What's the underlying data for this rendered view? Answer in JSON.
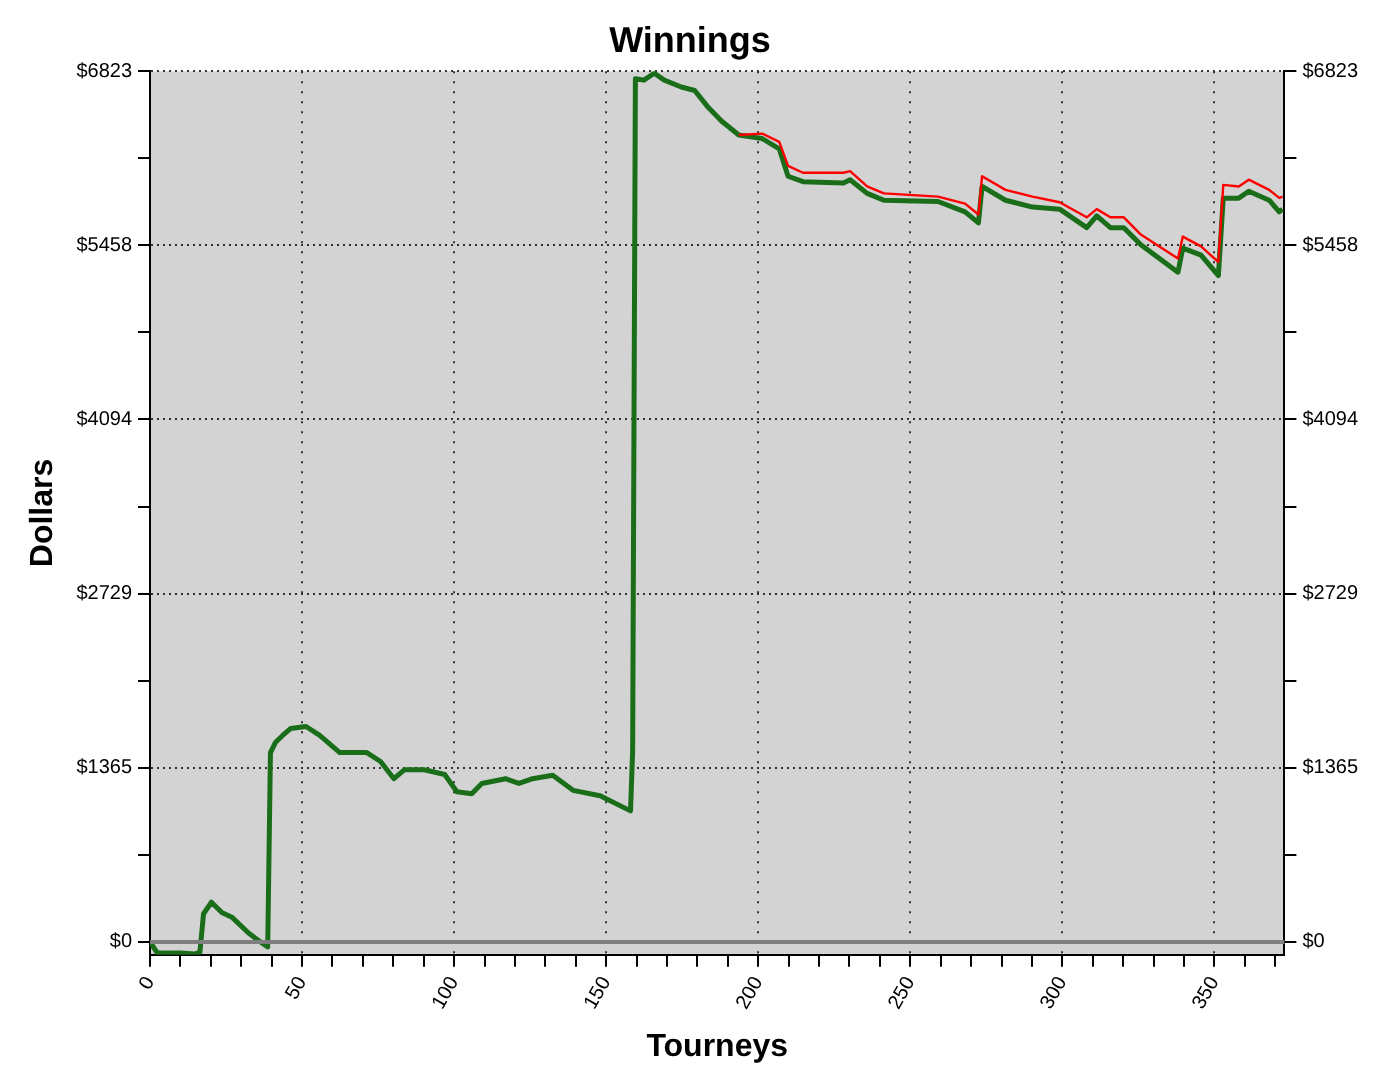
{
  "chart_data": {
    "type": "line",
    "title": "Winnings",
    "xlabel": "Tourneys",
    "ylabel": "Dollars",
    "xlim": [
      0,
      373
    ],
    "ylim": [
      -100,
      6823
    ],
    "y2lim": [
      -100,
      6823
    ],
    "xticks": [
      0,
      {
        "value": 10,
        "label": null
      },
      {
        "value": 20,
        "label": null
      },
      {
        "value": 30,
        "label": null
      },
      {
        "value": 40,
        "label": null
      },
      50,
      {
        "value": 60,
        "label": null
      },
      {
        "value": 70,
        "label": null
      },
      {
        "value": 80,
        "label": null
      },
      {
        "value": 90,
        "label": null
      },
      100,
      {
        "value": 110,
        "label": null
      },
      {
        "value": 120,
        "label": null
      },
      {
        "value": 130,
        "label": null
      },
      {
        "value": 140,
        "label": null
      },
      150,
      {
        "value": 160,
        "label": null
      },
      {
        "value": 170,
        "label": null
      },
      {
        "value": 180,
        "label": null
      },
      {
        "value": 190,
        "label": null
      },
      200,
      {
        "value": 210,
        "label": null
      },
      {
        "value": 220,
        "label": null
      },
      {
        "value": 230,
        "label": null
      },
      {
        "value": 240,
        "label": null
      },
      250,
      {
        "value": 260,
        "label": null
      },
      {
        "value": 270,
        "label": null
      },
      {
        "value": 280,
        "label": null
      },
      {
        "value": 290,
        "label": null
      },
      300,
      {
        "value": 310,
        "label": null
      },
      {
        "value": 320,
        "label": null
      },
      {
        "value": 330,
        "label": null
      },
      {
        "value": 340,
        "label": null
      },
      350,
      {
        "value": 360,
        "label": null
      },
      {
        "value": 370,
        "label": null
      }
    ],
    "yticks": [
      {
        "value": 0,
        "label": "$0"
      },
      {
        "value": 682,
        "label": null
      },
      {
        "value": 1365,
        "label": "$1365"
      },
      {
        "value": 2047,
        "label": null
      },
      {
        "value": 2729,
        "label": "$2729"
      },
      {
        "value": 3411,
        "label": null
      },
      {
        "value": 4094,
        "label": "$4094"
      },
      {
        "value": 4776,
        "label": null
      },
      {
        "value": 5458,
        "label": "$5458"
      },
      {
        "value": 6140,
        "label": null
      },
      {
        "value": 6823,
        "label": "$6823"
      }
    ],
    "y2ticks": [
      {
        "value": 0,
        "label": "$0"
      },
      {
        "value": 682,
        "label": null
      },
      {
        "value": 1365,
        "label": "$1365"
      },
      {
        "value": 2047,
        "label": null
      },
      {
        "value": 2729,
        "label": "$2729"
      },
      {
        "value": 3411,
        "label": null
      },
      {
        "value": 4094,
        "label": "$4094"
      },
      {
        "value": 4776,
        "label": null
      },
      {
        "value": 5458,
        "label": "$5458"
      },
      {
        "value": 6140,
        "label": null
      },
      {
        "value": 6823,
        "label": "$6823"
      }
    ],
    "grid": true,
    "legend": false,
    "marker": "none",
    "line_style": "solid",
    "ref_lines": [
      {
        "axis": "y",
        "value": 0,
        "color": "#7f7f7f"
      }
    ],
    "series": [
      {
        "color": "#ff0000",
        "x": [
          193.6,
          201.3,
          206.9,
          209.8,
          214.7,
          228,
          230.2,
          235.8,
          241.3,
          259.1,
          268,
          272.4,
          273.6,
          281.3,
          290.2,
          299.1,
          308,
          311.3,
          315.8,
          320.2,
          325.8,
          338,
          339.6,
          345.6,
          351.3,
          352.9,
          358,
          361.3,
          368,
          371.3,
          372.4
        ],
        "values": [
          6323,
          6334,
          6269,
          6081,
          6027,
          6027,
          6040,
          5920,
          5866,
          5840,
          5785,
          5700,
          6000,
          5893,
          5840,
          5796,
          5678,
          5742,
          5678,
          5678,
          5543,
          5355,
          5527,
          5450,
          5328,
          5932,
          5920,
          5973,
          5893,
          5830,
          5840
        ]
      },
      {
        "color": "#1a6e1a",
        "x": [
          0,
          2.4,
          10,
          14.7,
          16.4,
          17.6,
          20.2,
          23.6,
          26.9,
          32.4,
          36.9,
          38.7,
          39.6,
          41.3,
          43.6,
          46.2,
          51.3,
          55.8,
          62.4,
          71.3,
          75.8,
          80.2,
          83.6,
          90.2,
          96.9,
          100.9,
          105.8,
          109.1,
          116.9,
          121.3,
          125.8,
          132.4,
          139.1,
          148,
          158,
          158.7,
          159.6,
          162.4,
          165.8,
          169.1,
          174.7,
          179.1,
          183.6,
          188,
          193.6,
          201.3,
          206.9,
          209.8,
          214.7,
          228,
          230.2,
          235.8,
          241.3,
          259.1,
          268,
          272.4,
          273.6,
          281.3,
          290.2,
          299.1,
          308,
          311.3,
          315.8,
          320.2,
          325.8,
          338,
          339.6,
          345.6,
          351.3,
          352.9,
          358,
          361.3,
          368,
          371.3,
          372.4
        ],
        "values": [
          0,
          -86,
          -86,
          -95,
          -80,
          221,
          311,
          231,
          194,
          70,
          -10,
          -38,
          1484,
          1565,
          1618,
          1672,
          1688,
          1618,
          1484,
          1484,
          1414,
          1279,
          1349,
          1349,
          1312,
          1177,
          1162,
          1242,
          1279,
          1242,
          1279,
          1306,
          1188,
          1145,
          1027,
          1500,
          6764,
          6753,
          6807,
          6753,
          6699,
          6672,
          6538,
          6431,
          6323,
          6295,
          6215,
          6000,
          5957,
          5947,
          5973,
          5866,
          5812,
          5802,
          5721,
          5635,
          5920,
          5812,
          5758,
          5742,
          5597,
          5689,
          5597,
          5597,
          5463,
          5248,
          5436,
          5382,
          5221,
          5828,
          5828,
          5882,
          5812,
          5721,
          5742
        ]
      }
    ]
  }
}
